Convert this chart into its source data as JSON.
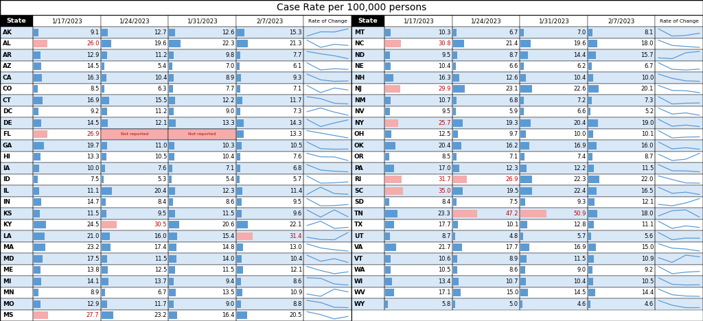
{
  "title": "Case Rate per 100,000 persons",
  "left_states": [
    {
      "state": "AK",
      "vals": [
        9.1,
        12.7,
        12.6,
        15.3
      ],
      "hl": [
        false,
        false,
        false,
        false
      ],
      "nr": [
        false,
        false,
        false,
        false
      ]
    },
    {
      "state": "AL",
      "vals": [
        26.0,
        19.6,
        22.3,
        21.3
      ],
      "hl": [
        true,
        false,
        false,
        false
      ],
      "nr": [
        false,
        false,
        false,
        false
      ]
    },
    {
      "state": "AR",
      "vals": [
        12.9,
        11.2,
        9.8,
        7.7
      ],
      "hl": [
        false,
        false,
        false,
        false
      ],
      "nr": [
        false,
        false,
        false,
        false
      ]
    },
    {
      "state": "AZ",
      "vals": [
        14.5,
        5.4,
        7.0,
        6.1
      ],
      "hl": [
        false,
        false,
        false,
        false
      ],
      "nr": [
        false,
        false,
        false,
        false
      ]
    },
    {
      "state": "CA",
      "vals": [
        16.3,
        10.4,
        8.9,
        9.3
      ],
      "hl": [
        false,
        false,
        false,
        false
      ],
      "nr": [
        false,
        false,
        false,
        false
      ]
    },
    {
      "state": "CO",
      "vals": [
        8.5,
        6.3,
        7.7,
        7.1
      ],
      "hl": [
        false,
        false,
        false,
        false
      ],
      "nr": [
        false,
        false,
        false,
        false
      ]
    },
    {
      "state": "CT",
      "vals": [
        16.9,
        15.5,
        12.2,
        11.7
      ],
      "hl": [
        false,
        false,
        false,
        false
      ],
      "nr": [
        false,
        false,
        false,
        false
      ]
    },
    {
      "state": "DC",
      "vals": [
        9.2,
        11.2,
        9.0,
        7.3
      ],
      "hl": [
        false,
        false,
        false,
        false
      ],
      "nr": [
        false,
        false,
        false,
        false
      ]
    },
    {
      "state": "DE",
      "vals": [
        14.5,
        12.1,
        13.3,
        14.3
      ],
      "hl": [
        false,
        false,
        false,
        false
      ],
      "nr": [
        false,
        false,
        false,
        false
      ]
    },
    {
      "state": "FL",
      "vals": [
        26.9,
        null,
        null,
        13.3
      ],
      "hl": [
        true,
        false,
        false,
        false
      ],
      "nr": [
        false,
        true,
        true,
        false
      ]
    },
    {
      "state": "GA",
      "vals": [
        19.7,
        11.0,
        10.3,
        10.5
      ],
      "hl": [
        false,
        false,
        false,
        false
      ],
      "nr": [
        false,
        false,
        false,
        false
      ]
    },
    {
      "state": "HI",
      "vals": [
        13.3,
        10.5,
        10.4,
        7.6
      ],
      "hl": [
        false,
        false,
        false,
        false
      ],
      "nr": [
        false,
        false,
        false,
        false
      ]
    },
    {
      "state": "IA",
      "vals": [
        10.0,
        7.6,
        7.1,
        6.8
      ],
      "hl": [
        false,
        false,
        false,
        false
      ],
      "nr": [
        false,
        false,
        false,
        false
      ]
    },
    {
      "state": "ID",
      "vals": [
        7.5,
        5.3,
        5.4,
        5.7
      ],
      "hl": [
        false,
        false,
        false,
        false
      ],
      "nr": [
        false,
        false,
        false,
        false
      ]
    },
    {
      "state": "IL",
      "vals": [
        11.1,
        20.4,
        12.3,
        11.4
      ],
      "hl": [
        false,
        false,
        false,
        false
      ],
      "nr": [
        false,
        false,
        false,
        false
      ]
    },
    {
      "state": "IN",
      "vals": [
        14.7,
        8.4,
        8.6,
        9.5
      ],
      "hl": [
        false,
        false,
        false,
        false
      ],
      "nr": [
        false,
        false,
        false,
        false
      ]
    },
    {
      "state": "KS",
      "vals": [
        11.5,
        9.5,
        11.5,
        9.6
      ],
      "hl": [
        false,
        false,
        false,
        false
      ],
      "nr": [
        false,
        false,
        false,
        false
      ]
    },
    {
      "state": "KY",
      "vals": [
        24.5,
        30.5,
        20.6,
        22.1
      ],
      "hl": [
        false,
        true,
        false,
        false
      ],
      "nr": [
        false,
        false,
        false,
        false
      ]
    },
    {
      "state": "LA",
      "vals": [
        21.0,
        16.0,
        15.4,
        31.4
      ],
      "hl": [
        false,
        false,
        false,
        true
      ],
      "nr": [
        false,
        false,
        false,
        false
      ]
    },
    {
      "state": "MA",
      "vals": [
        23.2,
        17.4,
        14.8,
        13.0
      ],
      "hl": [
        false,
        false,
        false,
        false
      ],
      "nr": [
        false,
        false,
        false,
        false
      ]
    },
    {
      "state": "MD",
      "vals": [
        17.5,
        11.5,
        14.0,
        10.4
      ],
      "hl": [
        false,
        false,
        false,
        false
      ],
      "nr": [
        false,
        false,
        false,
        false
      ]
    },
    {
      "state": "ME",
      "vals": [
        13.8,
        12.5,
        11.5,
        12.1
      ],
      "hl": [
        false,
        false,
        false,
        false
      ],
      "nr": [
        false,
        false,
        false,
        false
      ]
    },
    {
      "state": "MI",
      "vals": [
        14.1,
        13.7,
        9.4,
        8.6
      ],
      "hl": [
        false,
        false,
        false,
        false
      ],
      "nr": [
        false,
        false,
        false,
        false
      ]
    },
    {
      "state": "MN",
      "vals": [
        8.9,
        6.7,
        13.5,
        10.9
      ],
      "hl": [
        false,
        false,
        false,
        false
      ],
      "nr": [
        false,
        false,
        false,
        false
      ]
    },
    {
      "state": "MO",
      "vals": [
        12.9,
        11.7,
        9.0,
        8.8
      ],
      "hl": [
        false,
        false,
        false,
        false
      ],
      "nr": [
        false,
        false,
        false,
        false
      ]
    },
    {
      "state": "MS",
      "vals": [
        27.7,
        23.2,
        16.4,
        20.5
      ],
      "hl": [
        true,
        false,
        false,
        false
      ],
      "nr": [
        false,
        false,
        false,
        false
      ]
    }
  ],
  "right_states": [
    {
      "state": "MT",
      "vals": [
        10.3,
        6.7,
        7.0,
        8.1
      ],
      "hl": [
        false,
        false,
        false,
        false
      ],
      "nr": [
        false,
        false,
        false,
        false
      ]
    },
    {
      "state": "NC",
      "vals": [
        30.8,
        21.4,
        19.6,
        18.0
      ],
      "hl": [
        true,
        false,
        false,
        false
      ],
      "nr": [
        false,
        false,
        false,
        false
      ]
    },
    {
      "state": "ND",
      "vals": [
        9.5,
        8.7,
        14.4,
        15.7
      ],
      "hl": [
        false,
        false,
        false,
        false
      ],
      "nr": [
        false,
        false,
        false,
        false
      ]
    },
    {
      "state": "NE",
      "vals": [
        10.4,
        6.6,
        6.2,
        6.7
      ],
      "hl": [
        false,
        false,
        false,
        false
      ],
      "nr": [
        false,
        false,
        false,
        false
      ]
    },
    {
      "state": "NH",
      "vals": [
        16.3,
        12.6,
        10.4,
        10.0
      ],
      "hl": [
        false,
        false,
        false,
        false
      ],
      "nr": [
        false,
        false,
        false,
        false
      ]
    },
    {
      "state": "NJ",
      "vals": [
        29.9,
        23.1,
        22.6,
        20.1
      ],
      "hl": [
        true,
        false,
        false,
        false
      ],
      "nr": [
        false,
        false,
        false,
        false
      ]
    },
    {
      "state": "NM",
      "vals": [
        10.7,
        6.8,
        7.2,
        7.3
      ],
      "hl": [
        false,
        false,
        false,
        false
      ],
      "nr": [
        false,
        false,
        false,
        false
      ]
    },
    {
      "state": "NV",
      "vals": [
        9.5,
        5.9,
        6.6,
        5.2
      ],
      "hl": [
        false,
        false,
        false,
        false
      ],
      "nr": [
        false,
        false,
        false,
        false
      ]
    },
    {
      "state": "NY",
      "vals": [
        25.7,
        19.3,
        20.4,
        19.0
      ],
      "hl": [
        true,
        false,
        false,
        false
      ],
      "nr": [
        false,
        false,
        false,
        false
      ]
    },
    {
      "state": "OH",
      "vals": [
        12.5,
        9.7,
        10.0,
        10.1
      ],
      "hl": [
        false,
        false,
        false,
        false
      ],
      "nr": [
        false,
        false,
        false,
        false
      ]
    },
    {
      "state": "OK",
      "vals": [
        20.4,
        16.2,
        16.9,
        16.0
      ],
      "hl": [
        false,
        false,
        false,
        false
      ],
      "nr": [
        false,
        false,
        false,
        false
      ]
    },
    {
      "state": "OR",
      "vals": [
        8.5,
        7.1,
        7.4,
        8.7
      ],
      "hl": [
        false,
        false,
        false,
        false
      ],
      "nr": [
        false,
        false,
        false,
        false
      ]
    },
    {
      "state": "PA",
      "vals": [
        17.0,
        12.3,
        12.2,
        11.5
      ],
      "hl": [
        false,
        false,
        false,
        false
      ],
      "nr": [
        false,
        false,
        false,
        false
      ]
    },
    {
      "state": "RI",
      "vals": [
        31.7,
        26.9,
        22.3,
        22.0
      ],
      "hl": [
        true,
        true,
        false,
        false
      ],
      "nr": [
        false,
        false,
        false,
        false
      ]
    },
    {
      "state": "SC",
      "vals": [
        35.0,
        19.5,
        22.4,
        16.5
      ],
      "hl": [
        true,
        false,
        false,
        false
      ],
      "nr": [
        false,
        false,
        false,
        false
      ]
    },
    {
      "state": "SD",
      "vals": [
        8.4,
        7.5,
        9.3,
        12.1
      ],
      "hl": [
        false,
        false,
        false,
        false
      ],
      "nr": [
        false,
        false,
        false,
        false
      ]
    },
    {
      "state": "TN",
      "vals": [
        23.3,
        47.2,
        50.9,
        18.0
      ],
      "hl": [
        false,
        true,
        true,
        false
      ],
      "nr": [
        false,
        false,
        false,
        false
      ]
    },
    {
      "state": "TX",
      "vals": [
        17.7,
        10.1,
        12.8,
        11.1
      ],
      "hl": [
        false,
        false,
        false,
        false
      ],
      "nr": [
        false,
        false,
        false,
        false
      ]
    },
    {
      "state": "UT",
      "vals": [
        8.7,
        4.8,
        5.7,
        5.6
      ],
      "hl": [
        false,
        false,
        false,
        false
      ],
      "nr": [
        false,
        false,
        false,
        false
      ]
    },
    {
      "state": "VA",
      "vals": [
        21.7,
        17.7,
        16.9,
        15.0
      ],
      "hl": [
        false,
        false,
        false,
        false
      ],
      "nr": [
        false,
        false,
        false,
        false
      ]
    },
    {
      "state": "VT",
      "vals": [
        10.6,
        8.9,
        11.5,
        10.9
      ],
      "hl": [
        false,
        false,
        false,
        false
      ],
      "nr": [
        false,
        false,
        false,
        false
      ]
    },
    {
      "state": "WA",
      "vals": [
        10.5,
        8.6,
        9.0,
        9.2
      ],
      "hl": [
        false,
        false,
        false,
        false
      ],
      "nr": [
        false,
        false,
        false,
        false
      ]
    },
    {
      "state": "WI",
      "vals": [
        13.4,
        10.7,
        10.4,
        10.5
      ],
      "hl": [
        false,
        false,
        false,
        false
      ],
      "nr": [
        false,
        false,
        false,
        false
      ]
    },
    {
      "state": "WV",
      "vals": [
        17.1,
        15.0,
        14.5,
        14.4
      ],
      "hl": [
        false,
        false,
        false,
        false
      ],
      "nr": [
        false,
        false,
        false,
        false
      ]
    },
    {
      "state": "WY",
      "vals": [
        5.8,
        5.0,
        4.6,
        4.6
      ],
      "hl": [
        false,
        false,
        false,
        false
      ],
      "nr": [
        false,
        false,
        false,
        false
      ]
    }
  ],
  "date_labels": [
    "1/17/2023",
    "1/24/2023",
    "1/31/2023",
    "2/7/2023"
  ],
  "bar_color": "#5B9BD5",
  "highlight_color": "#F4ACAC",
  "text_highlight_color": "#C00000",
  "bar_max": 55.0,
  "font_size": 6.5,
  "header_font_size": 6.8
}
